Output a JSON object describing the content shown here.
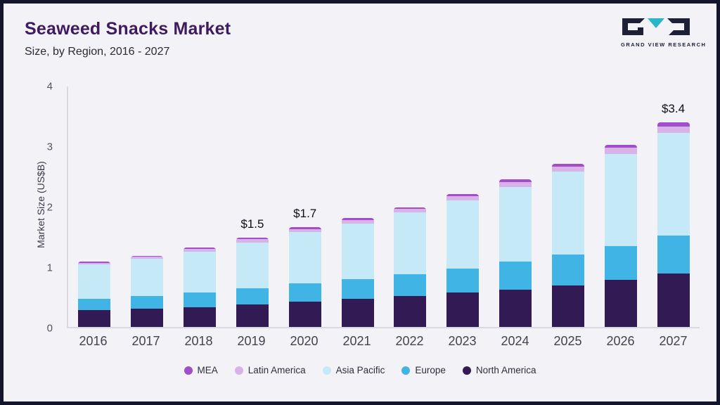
{
  "header": {
    "title": "Seaweed Snacks Market",
    "subtitle": "Size, by Region, 2016 - 2027",
    "logo_text": "GRAND VIEW RESEARCH"
  },
  "colors": {
    "background": "#f3f2f7",
    "frame": "#15152b",
    "title": "#3e1a5e",
    "logo_dark": "#1e2038",
    "logo_teal": "#2ab5c9",
    "axis": "#dad9e2"
  },
  "chart_data": {
    "type": "bar",
    "stacked": true,
    "title": "Seaweed Snacks Market Size, by Region, 2016 - 2027",
    "xlabel": "",
    "ylabel": "Market Size (US$B)",
    "ylim": [
      0,
      4
    ],
    "yticks": [
      0,
      1,
      2,
      3,
      4
    ],
    "grid": false,
    "legend_position": "bottom",
    "categories": [
      "2016",
      "2017",
      "2018",
      "2019",
      "2020",
      "2021",
      "2022",
      "2023",
      "2024",
      "2025",
      "2026",
      "2027"
    ],
    "series": [
      {
        "name": "North America",
        "color": "#321a54",
        "values": [
          0.28,
          0.3,
          0.33,
          0.37,
          0.42,
          0.46,
          0.51,
          0.57,
          0.62,
          0.69,
          0.78,
          0.88
        ]
      },
      {
        "name": "Europe",
        "color": "#3fb4e5",
        "values": [
          0.18,
          0.21,
          0.24,
          0.27,
          0.3,
          0.33,
          0.36,
          0.4,
          0.46,
          0.51,
          0.56,
          0.63
        ]
      },
      {
        "name": "Asia Pacific",
        "color": "#c6e9f8",
        "values": [
          0.57,
          0.62,
          0.68,
          0.76,
          0.85,
          0.92,
          1.02,
          1.12,
          1.24,
          1.37,
          1.52,
          1.7
        ]
      },
      {
        "name": "Latin America",
        "color": "#d9b3e8",
        "values": [
          0.03,
          0.03,
          0.04,
          0.05,
          0.05,
          0.06,
          0.06,
          0.07,
          0.08,
          0.08,
          0.1,
          0.11
        ]
      },
      {
        "name": "MEA",
        "color": "#a14ec9",
        "values": [
          0.02,
          0.02,
          0.02,
          0.03,
          0.03,
          0.03,
          0.03,
          0.04,
          0.04,
          0.05,
          0.05,
          0.06
        ]
      }
    ],
    "annotations": {
      "2019": "$1.5",
      "2020": "$1.7",
      "2027": "$3.4"
    },
    "totals": [
      1.08,
      1.18,
      1.31,
      1.48,
      1.65,
      1.8,
      1.98,
      2.2,
      2.44,
      2.7,
      3.01,
      3.38
    ]
  }
}
